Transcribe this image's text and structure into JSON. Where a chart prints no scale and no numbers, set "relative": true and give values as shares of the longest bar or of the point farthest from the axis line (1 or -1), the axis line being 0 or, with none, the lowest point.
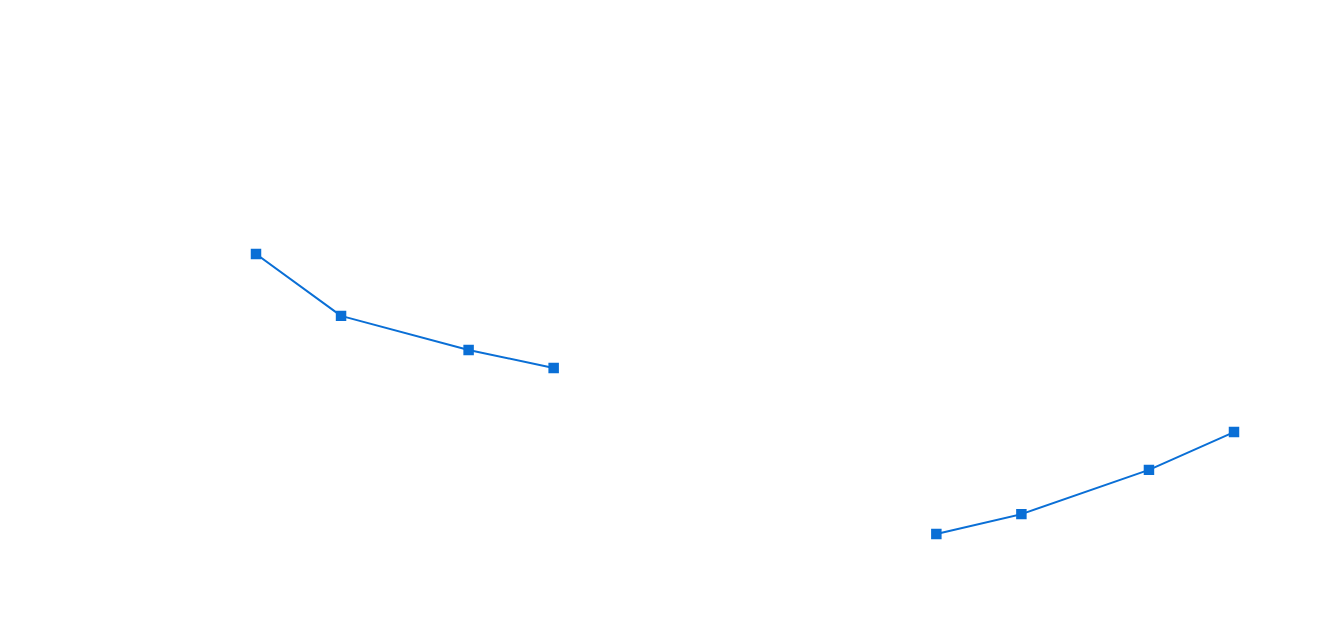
{
  "chart_data": {
    "type": "line",
    "relative": true,
    "marker": "square",
    "categories": [
      null,
      null,
      null,
      null,
      null,
      null,
      null,
      null,
      null,
      null,
      null,
      null,
      null,
      null,
      null,
      null,
      null,
      null,
      null,
      null,
      null,
      null,
      null,
      null
    ],
    "series": [
      {
        "color": "#0a6fd6",
        "values": [
          1,
          null,
          0.779,
          null,
          null,
          0.657,
          null,
          0.593,
          null,
          null,
          null,
          null,
          null,
          null,
          null,
          null,
          null,
          null,
          null,
          null,
          null,
          null,
          null,
          null
        ]
      },
      {
        "color": "#0a6fd6",
        "values": [
          null,
          null,
          null,
          null,
          null,
          null,
          null,
          null,
          null,
          null,
          null,
          null,
          null,
          null,
          null,
          null,
          0,
          null,
          0.071,
          null,
          null,
          0.229,
          null,
          0.364
        ]
      }
    ]
  }
}
